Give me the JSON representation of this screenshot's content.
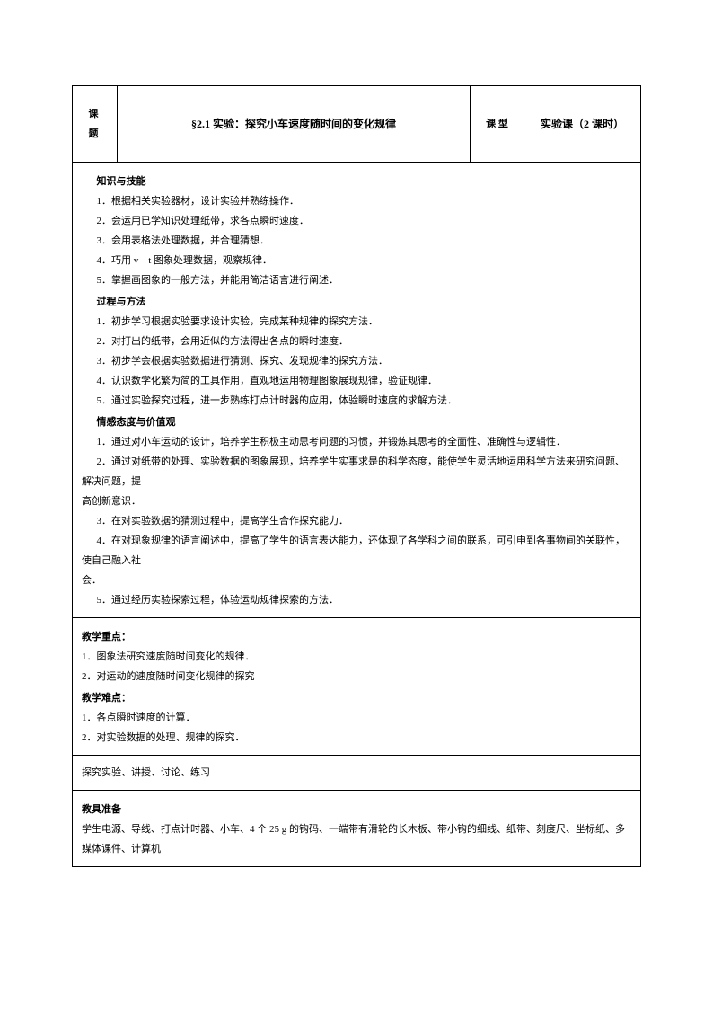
{
  "header": {
    "label": "课 题",
    "title": "§2.1 实验：探究小车速度随时间的变化规律",
    "type_label": "课 型",
    "type_value": "实验课（2 课时）"
  },
  "section1": {
    "heading1": "知识与技能",
    "items1": [
      "1．根据相关实验器材，设计实验并熟练操作．",
      "2．会运用已学知识处理纸带，求各点瞬时速度．",
      "3．会用表格法处理数据，并合理猜想．",
      "4．巧用 v—t 图象处理数据，观察规律．",
      "5．掌握画图象的一般方法，并能用简洁语言进行阐述．"
    ],
    "heading2": "过程与方法",
    "items2": [
      "1．初步学习根据实验要求设计实验，完成某种规律的探究方法．",
      "2．对打出的纸带，会用近似的方法得出各点的瞬时速度．",
      "3．初步学会根据实验数据进行猜测、探究、发现规律的探究方法．",
      "4．认识数学化繁为简的工具作用，直观地运用物理图象展现规律，验证规律．",
      "5．通过实验探究过程，进一步熟练打点计时器的应用，体验瞬时速度的求解方法．"
    ],
    "heading3": "情感态度与价值观",
    "item3_1": "1．通过对小车运动的设计，培养学生积极主动思考问题的习惯，并锻炼其思考的全面性、准确性与逻辑性．",
    "item3_2a": "2．通过对纸带的处理、实验数据的图象展现，培养学生实事求是的科学态度，能使学生灵活地运用科学方法来研究问题、解决问题，提",
    "item3_2b": "高创新意识．",
    "item3_3": "3．在对实验数据的猜测过程中，提高学生合作探究能力．",
    "item3_4a": "4．在对现象规律的语言阐述中，提高了学生的语言表达能力，还体现了各学科之间的联系，可引申到各事物间的关联性，使自己融入社",
    "item3_4b": "会．",
    "item3_5": "5．通过经历实验探索过程，体验运动规律探索的方法．"
  },
  "section2": {
    "heading1": "教学重点：",
    "items1": [
      "1．图象法研究速度随时间变化的规律．",
      "2．对运动的速度随时间变化规律的探究"
    ],
    "heading2": "教学难点：",
    "items2": [
      "1．各点瞬时速度的计算．",
      "2．对实验数据的处理、规律的探究．"
    ]
  },
  "section3": {
    "text": "探究实验、讲授、讨论、练习"
  },
  "section4": {
    "heading": "教具准备",
    "text": "学生电源、导线、打点计时器、小车、4 个 25 g 的钩码、一端带有滑轮的长木板、带小钩的细线、纸带、刻度尺、坐标纸、多媒体课件、计算机"
  }
}
